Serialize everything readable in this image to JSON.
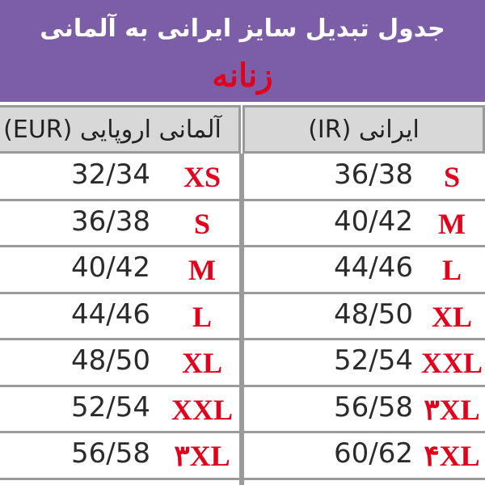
{
  "header": {
    "title": "جدول تبدیل سایز ایرانی به آلمانی",
    "subtitle": "زنانه"
  },
  "table": {
    "columns": [
      "آلمانی اروپایی (EUR)",
      "ایرانی (IR)"
    ],
    "rows": [
      [
        "XS",
        "32/34",
        "S",
        "36/38"
      ],
      [
        "S",
        "36/38",
        "M",
        "40/42"
      ],
      [
        "M",
        "40/42",
        "L",
        "44/46"
      ],
      [
        "L",
        "44/46",
        "XL",
        "48/50"
      ],
      [
        "XL",
        "48/50",
        "XXL",
        "52/54"
      ],
      [
        "XXL",
        "52/54",
        "۳XL",
        "56/58"
      ],
      [
        "۳XL",
        "56/58",
        "۴XL",
        "60/62"
      ]
    ]
  }
}
